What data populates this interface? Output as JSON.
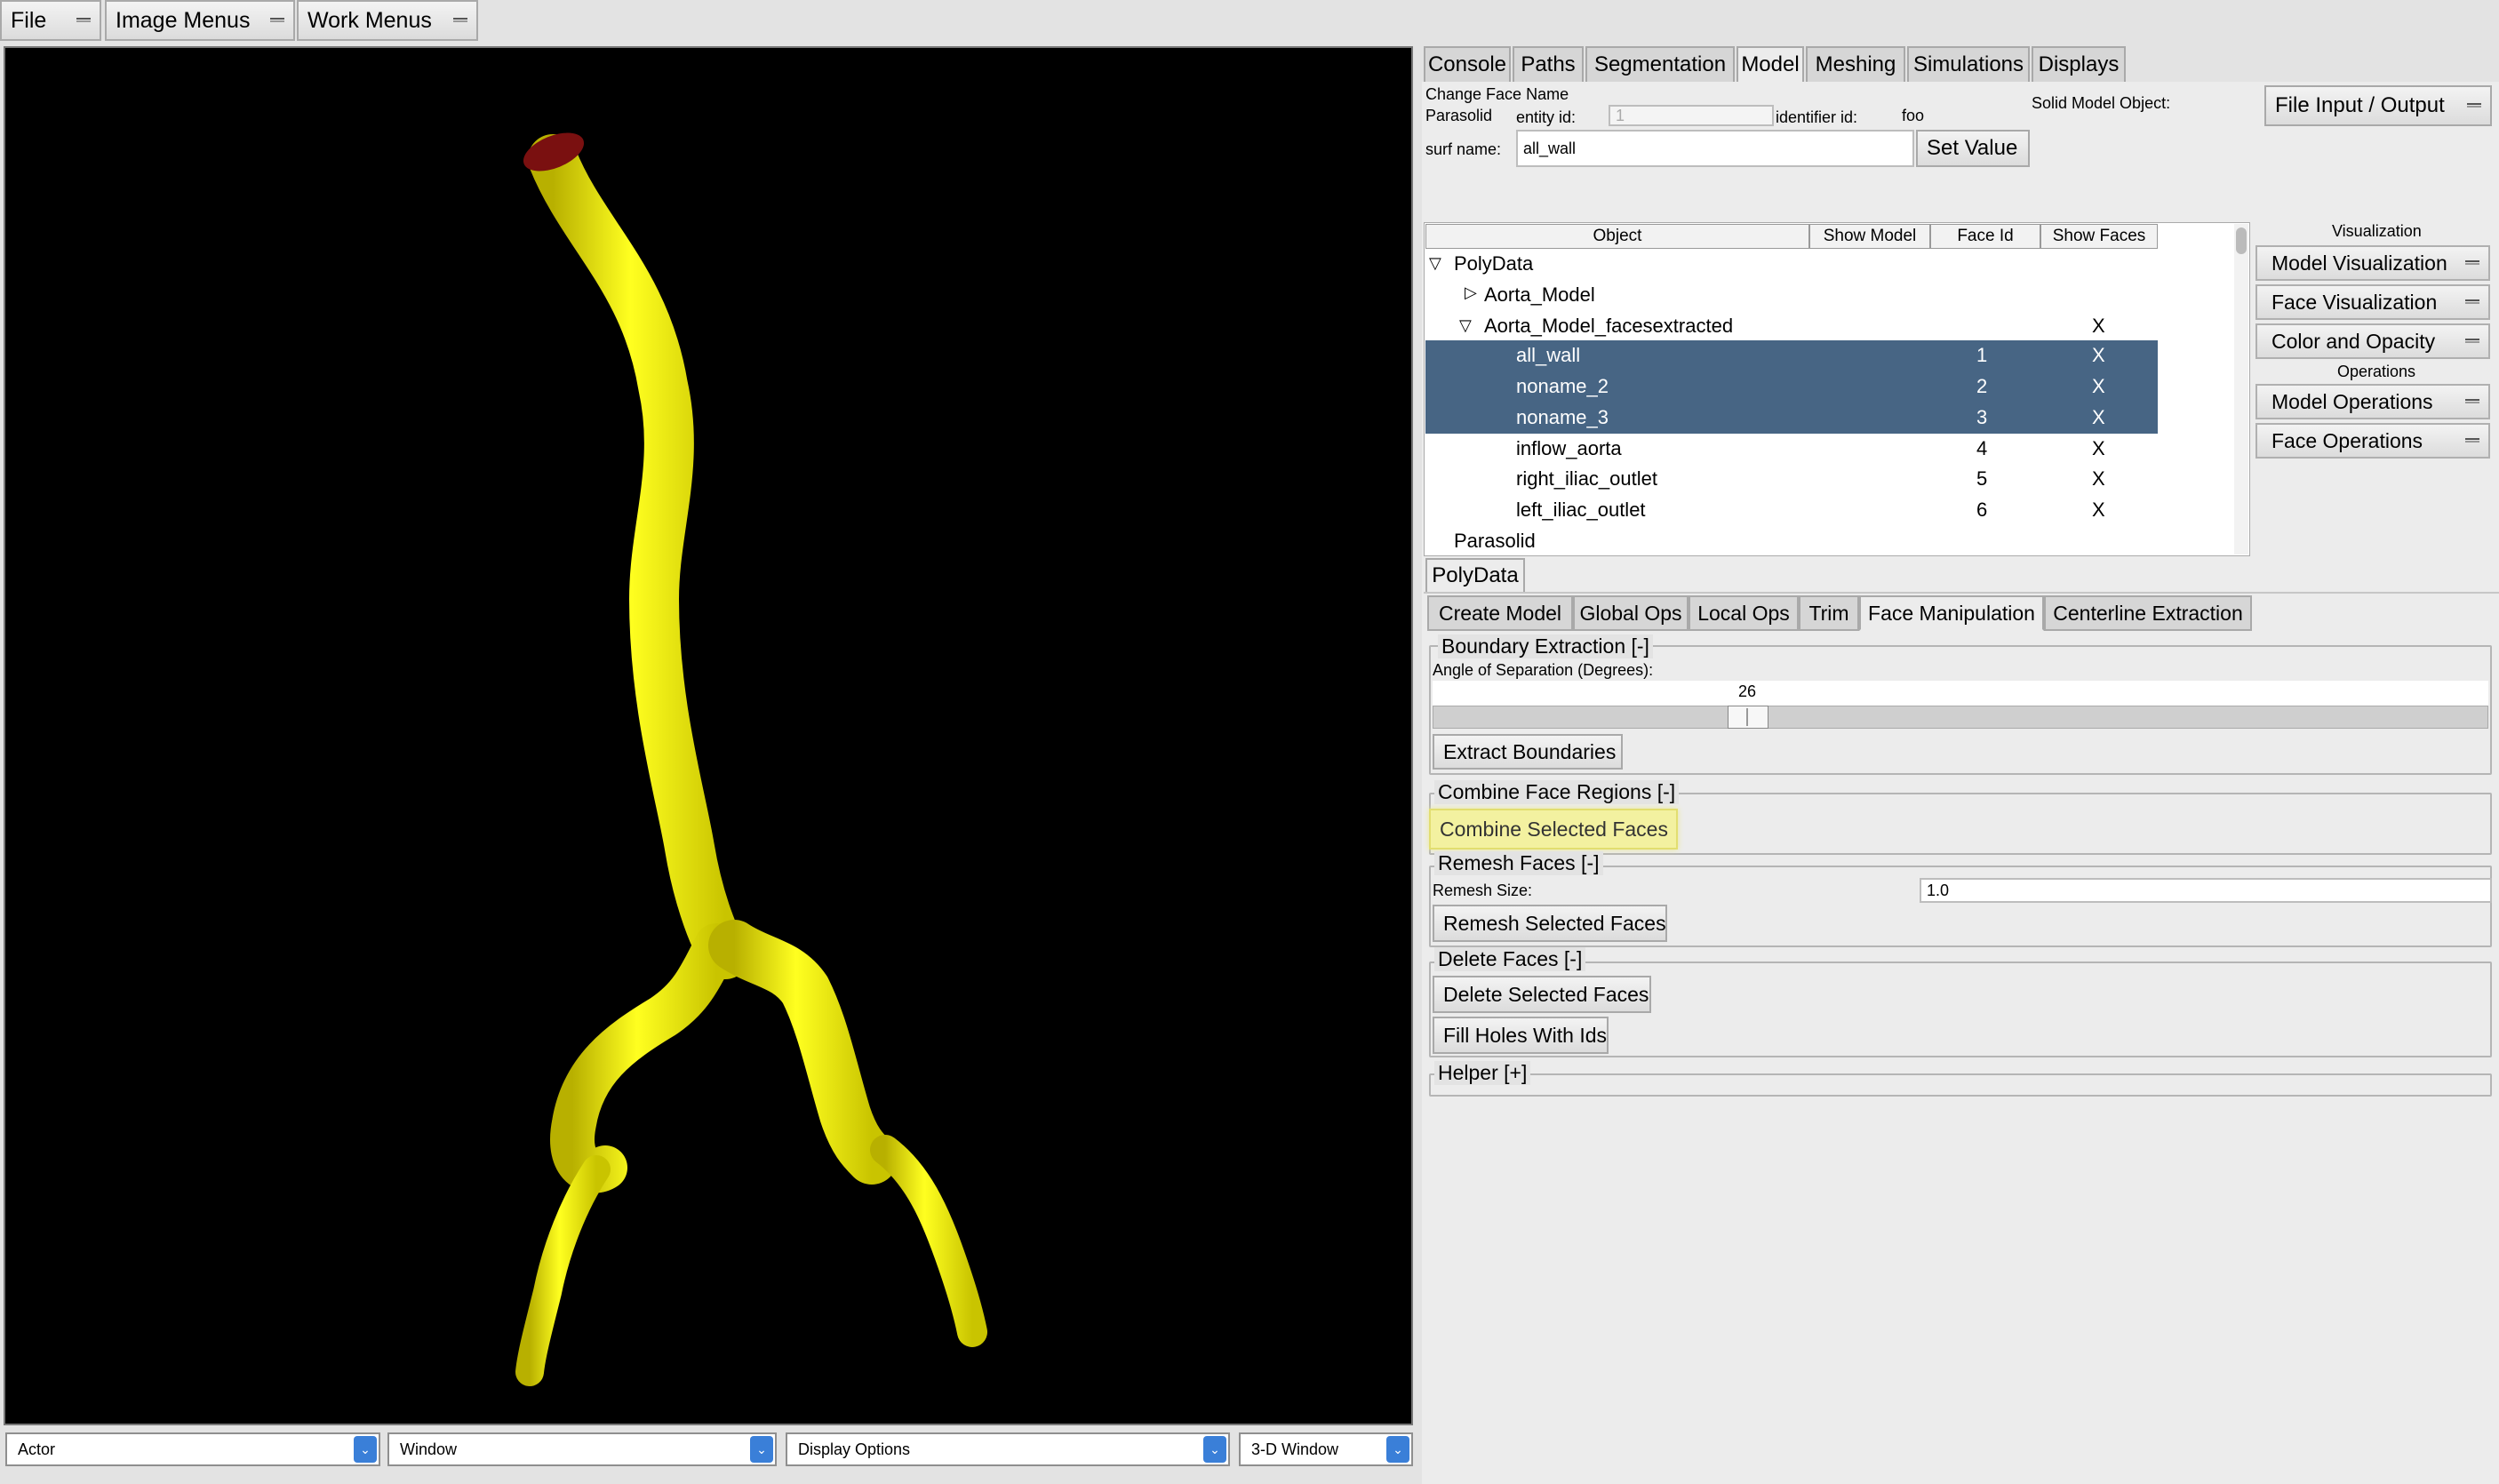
{
  "menubar": {
    "file": "File",
    "image_menus": "Image Menus",
    "work_menus": "Work Menus"
  },
  "viewport_footer": {
    "actor": "Actor",
    "window": "Window",
    "display_options": "Display Options",
    "view_window": "3-D Window"
  },
  "tabs": [
    "Console",
    "Paths",
    "Segmentation",
    "Model",
    "Meshing",
    "Simulations",
    "Displays"
  ],
  "change_face": {
    "title": "Change Face Name",
    "parasolid": "Parasolid",
    "entity_id_label": "entity id:",
    "entity_id_value": "1",
    "identifier_id_label": "identifier id:",
    "identifier_id_value": "foo",
    "surf_name_label": "surf name:",
    "surf_name_value": "all_wall",
    "set_value": "Set Value",
    "solid_model_object": "Solid Model Object:",
    "file_io": "File Input / Output"
  },
  "tree": {
    "headers": [
      "Object",
      "Show Model",
      "Face Id",
      "Show Faces"
    ],
    "root": "PolyData",
    "aorta_model": "Aorta_Model",
    "faces_extracted": "Aorta_Model_facesextracted",
    "faces": [
      {
        "name": "all_wall",
        "id": "1",
        "show": "X"
      },
      {
        "name": "noname_2",
        "id": "2",
        "show": "X"
      },
      {
        "name": "noname_3",
        "id": "3",
        "show": "X"
      },
      {
        "name": "inflow_aorta",
        "id": "4",
        "show": "X"
      },
      {
        "name": "right_iliac_outlet",
        "id": "5",
        "show": "X"
      },
      {
        "name": "left_iliac_outlet",
        "id": "6",
        "show": "X"
      }
    ],
    "extracted_show": "X",
    "parasolid": "Parasolid"
  },
  "side_menu": {
    "visualization": "Visualization",
    "model_visualization": "Model Visualization",
    "face_visualization": "Face Visualization",
    "color_opacity": "Color and Opacity",
    "operations": "Operations",
    "model_operations": "Model Operations",
    "face_operations": "Face Operations"
  },
  "polydata_tab": "PolyData",
  "subtabs": [
    "Create Model",
    "Global Ops",
    "Local Ops",
    "Trim",
    "Face Manipulation",
    "Centerline Extraction"
  ],
  "boundary": {
    "title": "Boundary Extraction [-]",
    "angle_label": "Angle of Separation (Degrees):",
    "angle_value": "26",
    "extract_button": "Extract Boundaries"
  },
  "combine": {
    "title": "Combine Face Regions [-]",
    "button": "Combine Selected Faces"
  },
  "remesh": {
    "title": "Remesh Faces [-]",
    "size_label": "Remesh Size:",
    "size_value": "1.0",
    "button": "Remesh Selected Faces"
  },
  "delete": {
    "title": "Delete Faces [-]",
    "delete_button": "Delete Selected Faces",
    "fill_button": "Fill Holes With Ids"
  },
  "helper": {
    "title": "Helper [+]"
  },
  "colors": {
    "vessel": "#f2ee00",
    "selection": "#476584",
    "highlight": "#f3f1a0"
  },
  "slider_fraction": 0.26
}
